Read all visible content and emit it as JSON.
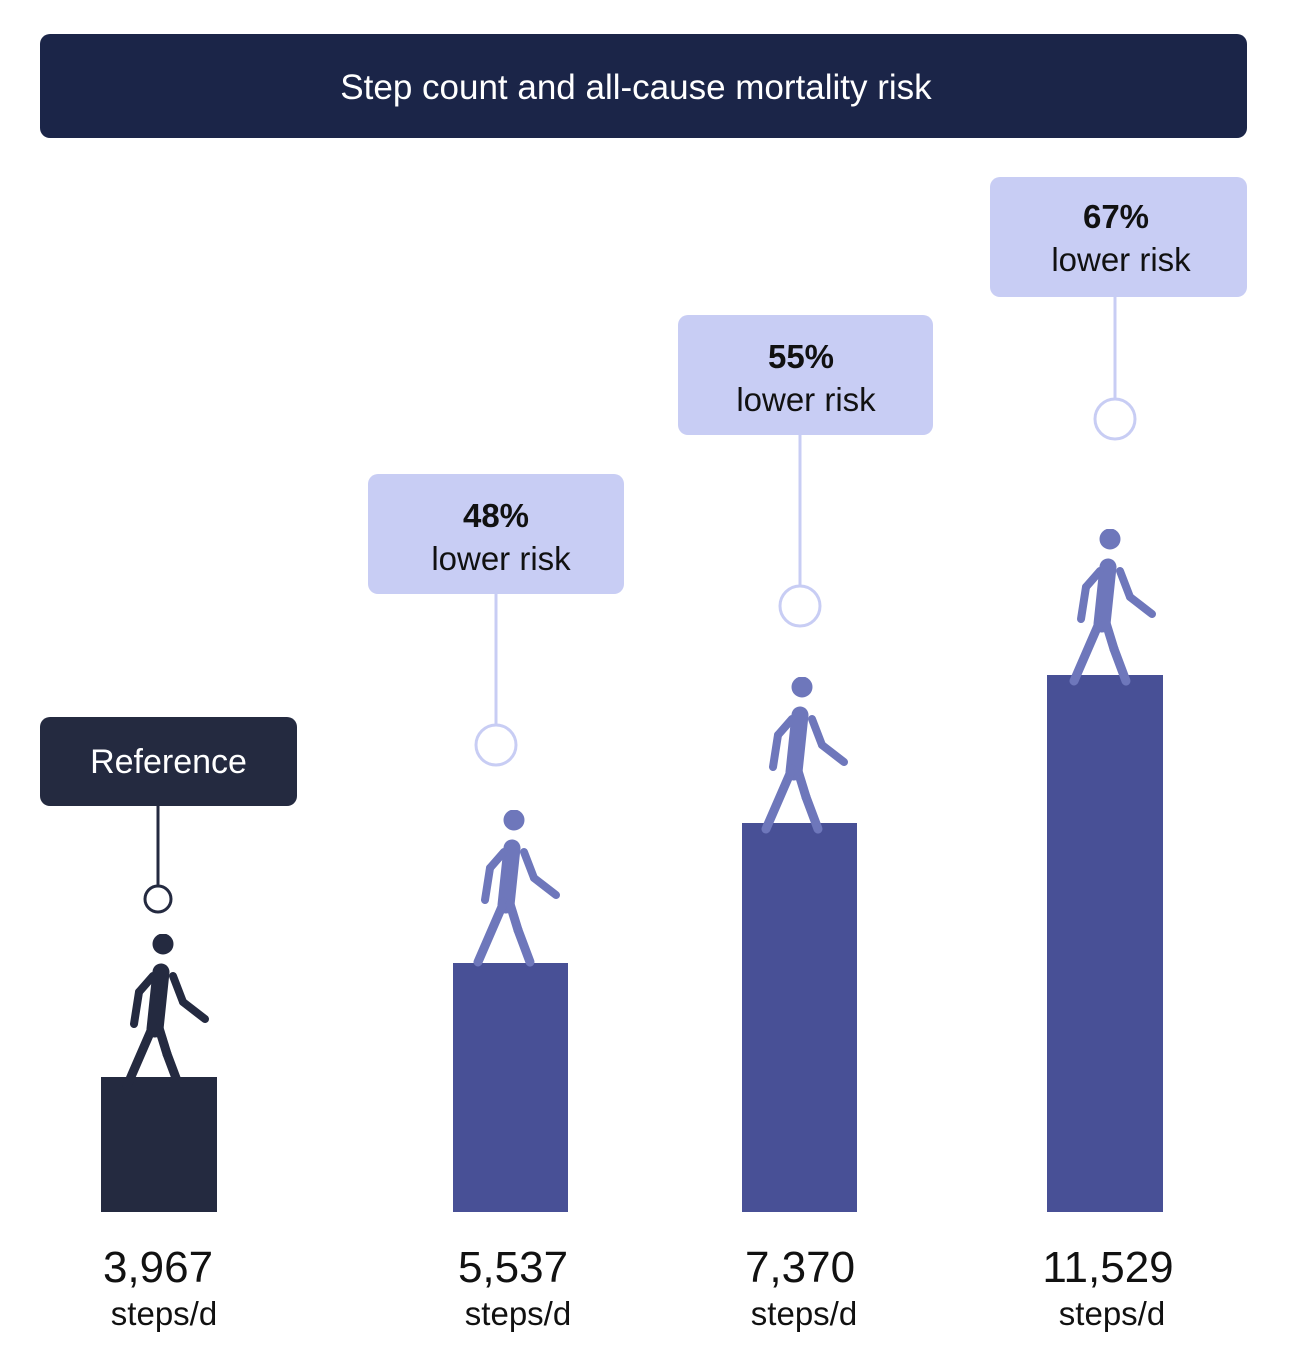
{
  "chart_data": {
    "type": "bar",
    "title": "Step count and all-cause mortality risk",
    "categories": [
      "3,967",
      "5,537",
      "7,370",
      "11,529"
    ],
    "unit": "steps/d",
    "x": [
      3967,
      5537,
      7370,
      11529
    ],
    "reduction_percent": [
      0,
      48,
      55,
      67
    ],
    "labels": [
      {
        "text": "Reference"
      },
      {
        "percent": "48%",
        "text": "lower risk"
      },
      {
        "percent": "55%",
        "text": "lower risk"
      },
      {
        "percent": "67%",
        "text": "lower risk"
      }
    ],
    "colors": {
      "title_bg": "#1b2548",
      "reference": "#242a40",
      "bar": "#485096",
      "walker": "#6e77bb",
      "callout": "#c8cdf4",
      "callout_line": "#c8cdf4",
      "text": "#111111"
    },
    "icon": "walking-person-icon"
  }
}
